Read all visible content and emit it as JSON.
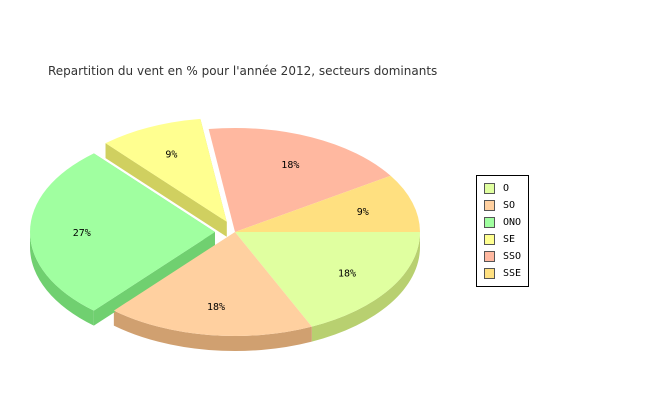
{
  "chart_data": {
    "type": "pie",
    "title": "Repartition du vent en % pour l'année 2012, secteurs dominants",
    "style": "3d-exploded",
    "legend_position": "right",
    "slices": [
      {
        "label": "O",
        "value": 18,
        "display": "18%",
        "color": "#e0ffa0",
        "side_color": "#b8d070",
        "exploded": false
      },
      {
        "label": "SO",
        "value": 18,
        "display": "18%",
        "color": "#ffd0a0",
        "side_color": "#d0a070",
        "exploded": false
      },
      {
        "label": "ONO",
        "value": 27,
        "display": "27%",
        "color": "#a0ffa0",
        "side_color": "#70d070",
        "exploded": true
      },
      {
        "label": "SE",
        "value": 9,
        "display": "9%",
        "color": "#ffff90",
        "side_color": "#d0d060",
        "exploded": true
      },
      {
        "label": "SSO",
        "value": 18,
        "display": "18%",
        "color": "#ffb8a0",
        "side_color": "#d08870",
        "exploded": false
      },
      {
        "label": "SSE",
        "value": 9,
        "display": "9%",
        "color": "#ffe080",
        "side_color": "#d0b050",
        "exploded": false
      }
    ]
  }
}
